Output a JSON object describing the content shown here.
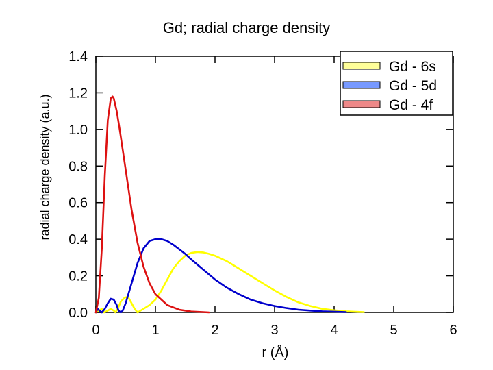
{
  "chart_data": {
    "type": "line",
    "title": "Gd; radial charge density",
    "xlabel": "r  (Å)",
    "ylabel": "radial charge density  (a.u.)",
    "xlim": [
      0,
      6
    ],
    "ylim": [
      0,
      1.4
    ],
    "xticks": [
      "0",
      "1",
      "2",
      "3",
      "4",
      "5",
      "6"
    ],
    "yticks": [
      "0.0",
      "0.2",
      "0.4",
      "0.6",
      "0.8",
      "1.0",
      "1.2",
      "1.4"
    ],
    "legend_position": "top-right",
    "series": [
      {
        "name": "Gd - 6s",
        "color": "#ffff00",
        "legend_fill": "#ffff99",
        "x": [
          0.0,
          0.05,
          0.1,
          0.14,
          0.2,
          0.25,
          0.3,
          0.33,
          0.38,
          0.42,
          0.48,
          0.52,
          0.55,
          0.6,
          0.65,
          0.7,
          0.75,
          0.8,
          0.9,
          1.0,
          1.1,
          1.2,
          1.3,
          1.4,
          1.5,
          1.6,
          1.7,
          1.8,
          1.9,
          2.0,
          2.2,
          2.4,
          2.6,
          2.8,
          3.0,
          3.2,
          3.4,
          3.6,
          3.8,
          4.0,
          4.2,
          4.4,
          4.5
        ],
        "y": [
          0.0,
          0.01,
          0.02,
          0.0,
          0.01,
          0.02,
          0.01,
          0.0,
          0.03,
          0.06,
          0.08,
          0.085,
          0.08,
          0.05,
          0.02,
          0.0,
          0.01,
          0.02,
          0.04,
          0.07,
          0.12,
          0.18,
          0.24,
          0.28,
          0.31,
          0.325,
          0.33,
          0.328,
          0.32,
          0.31,
          0.28,
          0.24,
          0.2,
          0.16,
          0.12,
          0.085,
          0.055,
          0.035,
          0.02,
          0.012,
          0.006,
          0.003,
          0.002
        ]
      },
      {
        "name": "Gd - 5d",
        "color": "#0000cc",
        "legend_fill": "#7799ff",
        "x": [
          0.0,
          0.03,
          0.06,
          0.1,
          0.15,
          0.2,
          0.25,
          0.3,
          0.35,
          0.38,
          0.42,
          0.45,
          0.5,
          0.6,
          0.7,
          0.8,
          0.9,
          1.0,
          1.05,
          1.1,
          1.2,
          1.3,
          1.4,
          1.5,
          1.6,
          1.8,
          2.0,
          2.2,
          2.4,
          2.6,
          2.8,
          3.0,
          3.2,
          3.4,
          3.6,
          3.8,
          4.0,
          4.2
        ],
        "y": [
          0.0,
          0.02,
          0.01,
          0.0,
          0.02,
          0.05,
          0.075,
          0.07,
          0.04,
          0.01,
          0.0,
          0.01,
          0.05,
          0.16,
          0.27,
          0.35,
          0.39,
          0.4,
          0.402,
          0.4,
          0.39,
          0.37,
          0.345,
          0.32,
          0.29,
          0.235,
          0.18,
          0.135,
          0.1,
          0.07,
          0.05,
          0.035,
          0.024,
          0.015,
          0.01,
          0.006,
          0.004,
          0.002
        ]
      },
      {
        "name": "Gd - 4f",
        "color": "#dd1111",
        "legend_fill": "#ee8888",
        "x": [
          0.0,
          0.05,
          0.1,
          0.15,
          0.2,
          0.25,
          0.28,
          0.3,
          0.35,
          0.4,
          0.5,
          0.6,
          0.7,
          0.8,
          0.9,
          1.0,
          1.2,
          1.4,
          1.6,
          1.8,
          1.9
        ],
        "y": [
          0.0,
          0.08,
          0.35,
          0.75,
          1.05,
          1.17,
          1.18,
          1.17,
          1.1,
          1.0,
          0.78,
          0.56,
          0.38,
          0.25,
          0.16,
          0.1,
          0.04,
          0.015,
          0.005,
          0.002,
          0.0
        ]
      }
    ]
  }
}
